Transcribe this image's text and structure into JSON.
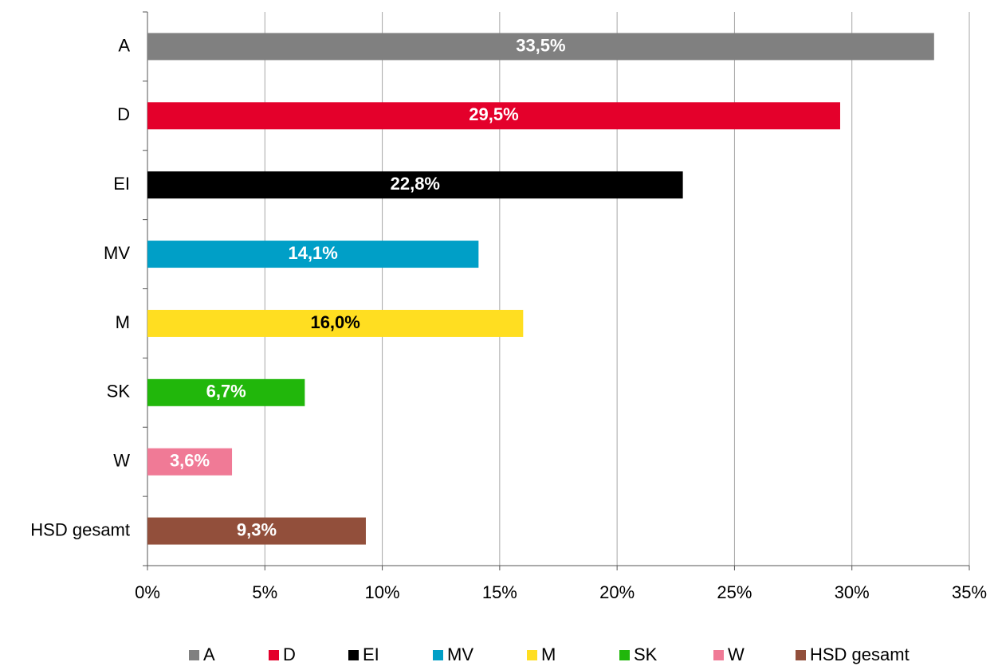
{
  "chart_data": {
    "type": "hbar",
    "categories": [
      "A",
      "D",
      "EI",
      "MV",
      "M",
      "SK",
      "W",
      "HSD gesamt"
    ],
    "values": [
      33.5,
      29.5,
      22.8,
      14.1,
      16.0,
      6.7,
      3.6,
      9.3
    ],
    "value_labels": [
      "33,5%",
      "29,5%",
      "22,8%",
      "14,1%",
      "16,0%",
      "6,7%",
      "3,6%",
      "9,3%"
    ],
    "colors": [
      "#808080",
      "#e4002b",
      "#000000",
      "#009fc7",
      "#ffde21",
      "#21b70b",
      "#f07a96",
      "#924f3b"
    ],
    "label_colors": [
      "#ffffff",
      "#ffffff",
      "#ffffff",
      "#ffffff",
      "#000000",
      "#ffffff",
      "#ffffff",
      "#ffffff"
    ],
    "xlim": [
      0,
      35
    ],
    "xticks": [
      {
        "value": 0,
        "label": "0%"
      },
      {
        "value": 5,
        "label": "5%"
      },
      {
        "value": 10,
        "label": "10%"
      },
      {
        "value": 15,
        "label": "15%"
      },
      {
        "value": 20,
        "label": "20%"
      },
      {
        "value": 25,
        "label": "25%"
      },
      {
        "value": 30,
        "label": "30%"
      },
      {
        "value": 35,
        "label": "35%"
      }
    ],
    "grid": true,
    "legend": "bottom"
  }
}
